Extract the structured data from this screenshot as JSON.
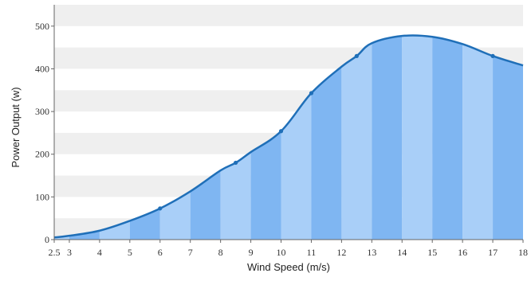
{
  "chart_data": {
    "type": "area",
    "xlabel": "Wind Speed (m/s)",
    "ylabel": "Power Output (w)",
    "ylim": [
      0,
      550
    ],
    "y_ticks": [
      0,
      100,
      200,
      300,
      400,
      500
    ],
    "x_ticks": [
      2.5,
      3,
      4,
      5,
      6,
      7,
      8,
      9,
      10,
      11,
      12,
      13,
      14,
      15,
      16,
      17,
      18
    ],
    "x_tick_labels": [
      "2.5",
      "3",
      "4",
      "5",
      "6",
      "7",
      "8",
      "9",
      "10",
      "11",
      "12",
      "13",
      "14",
      "15",
      "16",
      "17",
      "18"
    ],
    "xlim": [
      2.5,
      18
    ],
    "grid": "alternating horizontal bands",
    "series": [
      {
        "values": [
          {
            "x": 2.5,
            "y": 5
          },
          {
            "x": 3,
            "y": 9
          },
          {
            "x": 4,
            "y": 21
          },
          {
            "x": 5,
            "y": 44
          },
          {
            "x": 6,
            "y": 73
          },
          {
            "x": 7,
            "y": 113
          },
          {
            "x": 8,
            "y": 162
          },
          {
            "x": 8.5,
            "y": 180
          },
          {
            "x": 9,
            "y": 205
          },
          {
            "x": 10,
            "y": 254
          },
          {
            "x": 11,
            "y": 343
          },
          {
            "x": 12,
            "y": 405
          },
          {
            "x": 12.5,
            "y": 430
          },
          {
            "x": 13,
            "y": 460
          },
          {
            "x": 14,
            "y": 477
          },
          {
            "x": 15,
            "y": 475
          },
          {
            "x": 16,
            "y": 458
          },
          {
            "x": 17,
            "y": 430
          },
          {
            "x": 18,
            "y": 408
          }
        ],
        "markers_at_x": [
          6,
          8.5,
          10,
          11,
          12.5,
          17
        ]
      }
    ]
  },
  "colors": {
    "line": "#1f6fb8",
    "fill_dark": "#7fb6f2",
    "fill_light": "#a9cff8",
    "band": "#efefef",
    "axis": "#666666"
  }
}
